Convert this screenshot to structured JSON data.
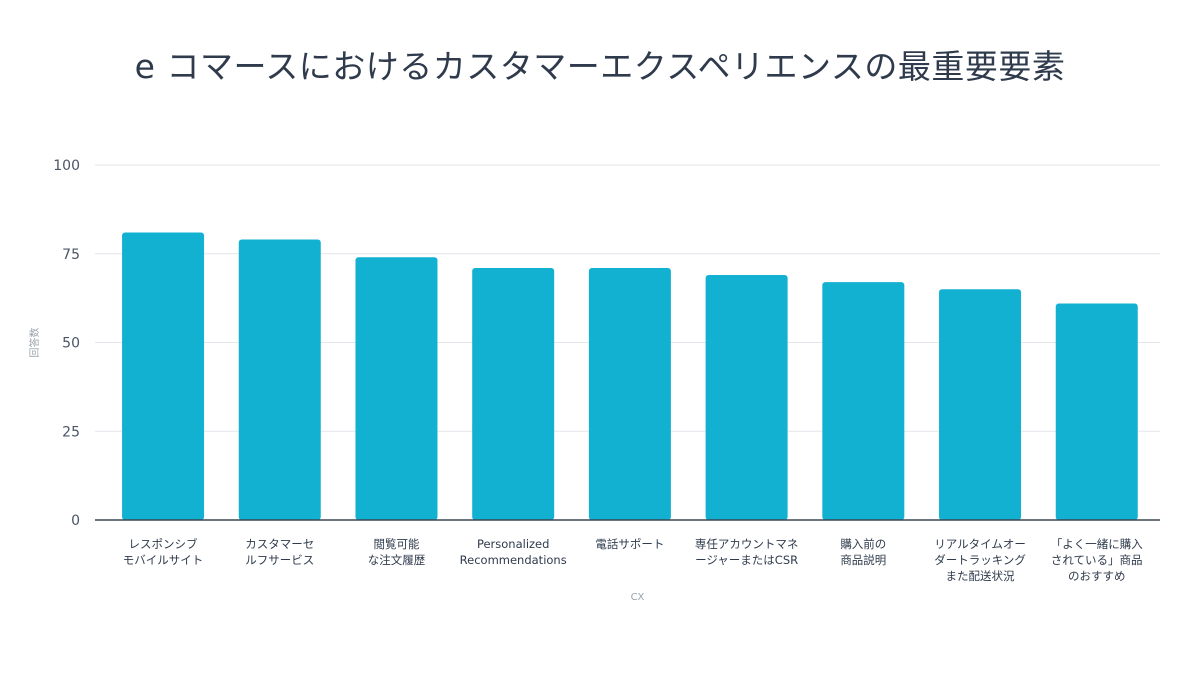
{
  "chart_data": {
    "type": "bar",
    "title": "e コマースにおけるカスタマーエクスペリエンスの最重要要素",
    "xlabel": "CX",
    "ylabel": "回答数",
    "ylim": [
      0,
      100
    ],
    "yticks": [
      0,
      25,
      50,
      75,
      100
    ],
    "grid": true,
    "color": "#13b1d1",
    "categories": [
      "レスポンシブ\nモバイルサイト",
      "カスタマーセ\nルフサービス",
      "閲覧可能\nな注文履歴",
      "Personalized\nRecommendations",
      "電話サポート",
      "専任アカウントマネ\nージャーまたはCSR",
      "購入前の\n商品説明",
      "リアルタイムオー\nダートラッキング\nまた配送状況",
      "「よく一緒に購入\nされている」商品\nのおすすめ"
    ],
    "values": [
      81,
      79,
      74,
      71,
      71,
      69,
      67,
      65,
      61
    ]
  }
}
